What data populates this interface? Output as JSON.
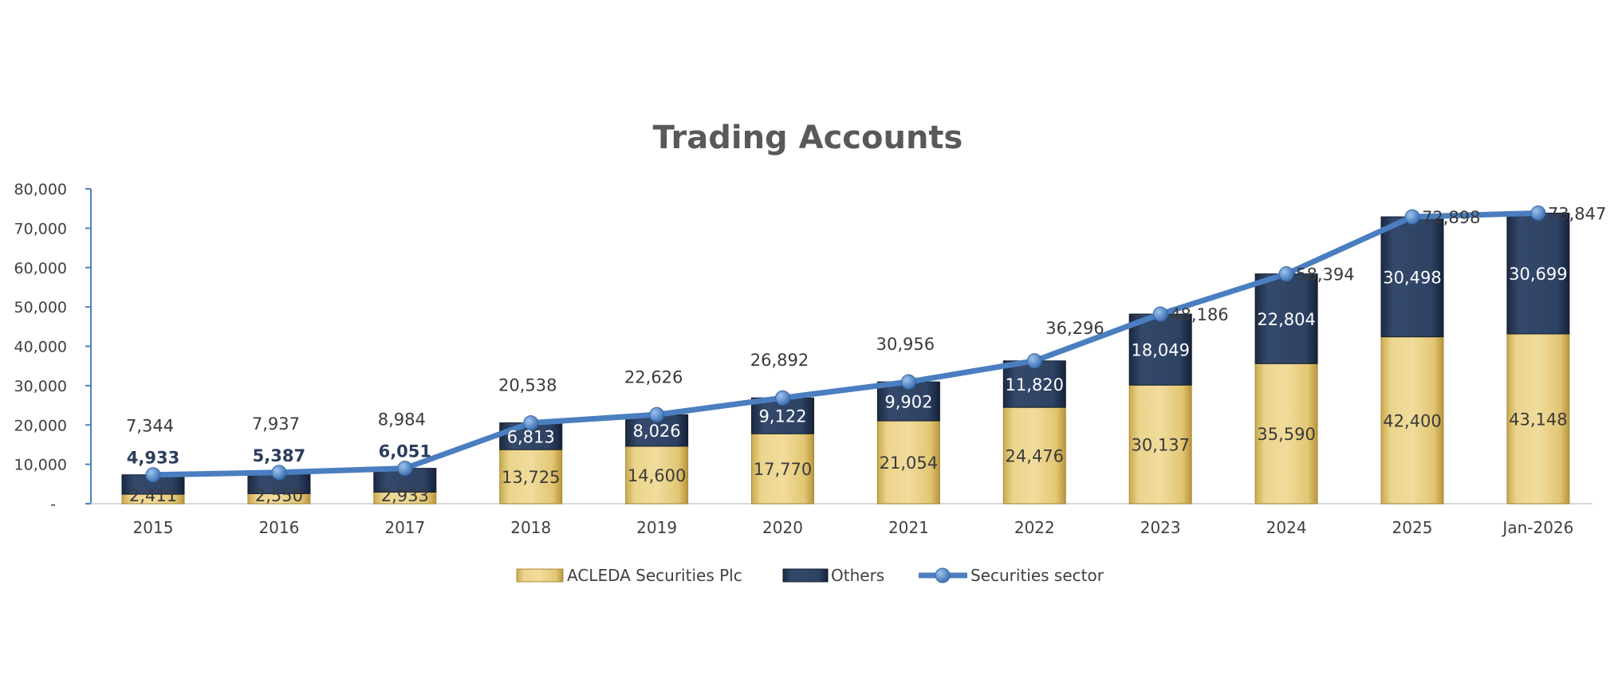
{
  "chart_data": {
    "type": "bar",
    "stacked": true,
    "title": "Trading Accounts",
    "categories": [
      "2015",
      "2016",
      "2017",
      "2018",
      "2019",
      "2020",
      "2021",
      "2022",
      "2023",
      "2024",
      "2025",
      "Jan-2026"
    ],
    "series": [
      {
        "name": "ACLEDA Securities Plc",
        "type": "bar",
        "color": "#E3C877",
        "values": [
          2411,
          2550,
          2933,
          13725,
          14600,
          17770,
          21054,
          24476,
          30137,
          35590,
          42400,
          43148
        ],
        "labels": [
          "2,411",
          "2,550",
          "2,933",
          "13,725",
          "14,600",
          "17,770",
          "21,054",
          "24,476",
          "30,137",
          "35,590",
          "42,400",
          "43,148"
        ]
      },
      {
        "name": "Others",
        "type": "bar",
        "color": "#2B3D5C",
        "values": [
          4933,
          5387,
          6051,
          6813,
          8026,
          9122,
          9902,
          11820,
          18049,
          22804,
          30498,
          30699
        ],
        "labels": [
          "4,933",
          "5,387",
          "6,051",
          "6,813",
          "8,026",
          "9,122",
          "9,902",
          "11,820",
          "18,049",
          "22,804",
          "30,498",
          "30,699"
        ]
      },
      {
        "name": "Securities sector",
        "type": "line",
        "color": "#4F81BD",
        "values": [
          7344,
          7937,
          8984,
          20538,
          22626,
          26892,
          30956,
          36296,
          48186,
          58394,
          72898,
          73847
        ],
        "labels": [
          "7,344",
          "7,937",
          "8,984",
          "20,538",
          "22,626",
          "26,892",
          "30,956",
          "36,296",
          "48,186",
          "58,394",
          "72,898",
          "73,847"
        ]
      }
    ],
    "y_ticks": [
      "-",
      "10,000",
      "20,000",
      "30,000",
      "40,000",
      "50,000",
      "60,000",
      "70,000",
      "80,000"
    ],
    "ylim": [
      0,
      80000
    ],
    "grid": false,
    "legend": "bottom"
  }
}
